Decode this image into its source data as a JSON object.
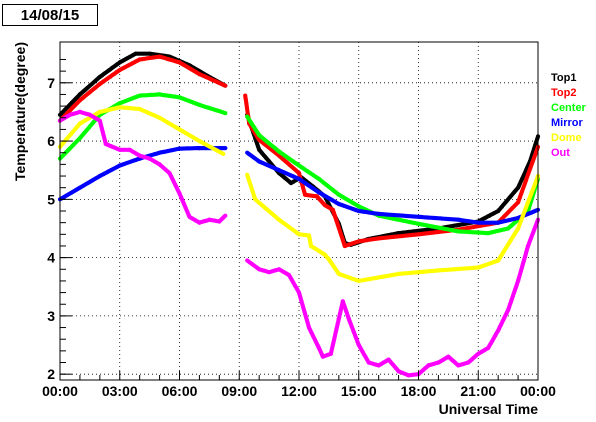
{
  "date_label": "14/08/15",
  "chart_data": {
    "type": "scatter",
    "title": "",
    "xlabel": "Universal Time",
    "ylabel": "Temperature(degree)",
    "xlim": [
      0,
      24
    ],
    "ylim": [
      1.9,
      7.7
    ],
    "grid": {
      "x": true,
      "y": true
    },
    "legend_position": "right",
    "x_ticks": [
      {
        "v": 0,
        "label": "00:00"
      },
      {
        "v": 3,
        "label": "03:00"
      },
      {
        "v": 6,
        "label": "06:00"
      },
      {
        "v": 9,
        "label": "09:00"
      },
      {
        "v": 12,
        "label": "12:00"
      },
      {
        "v": 15,
        "label": "15:00"
      },
      {
        "v": 18,
        "label": "18:00"
      },
      {
        "v": 21,
        "label": "21:00"
      },
      {
        "v": 24,
        "label": "00:00"
      }
    ],
    "y_ticks": [
      2,
      3,
      4,
      5,
      6,
      7
    ],
    "series": [
      {
        "name": "Top1",
        "color": "#000000",
        "segments": [
          [
            [
              0,
              6.45
            ],
            [
              1,
              6.8
            ],
            [
              2,
              7.1
            ],
            [
              3,
              7.35
            ],
            [
              3.8,
              7.5
            ],
            [
              4.5,
              7.5
            ],
            [
              5.5,
              7.45
            ],
            [
              6.5,
              7.3
            ],
            [
              7.5,
              7.1
            ],
            [
              8.3,
              6.95
            ]
          ],
          [
            [
              9.4,
              6.45
            ],
            [
              10,
              5.85
            ],
            [
              11,
              5.45
            ],
            [
              11.6,
              5.28
            ],
            [
              12.1,
              5.38
            ],
            [
              12.7,
              5.22
            ],
            [
              13.3,
              5.05
            ],
            [
              14,
              4.58
            ],
            [
              14.3,
              4.25
            ],
            [
              14.6,
              4.22
            ],
            [
              15.5,
              4.32
            ],
            [
              17,
              4.42
            ],
            [
              19,
              4.5
            ],
            [
              21,
              4.62
            ],
            [
              22,
              4.8
            ],
            [
              23,
              5.2
            ],
            [
              23.6,
              5.65
            ],
            [
              24,
              6.08
            ]
          ]
        ]
      },
      {
        "name": "Top2",
        "color": "#ff0000",
        "segments": [
          [
            [
              0,
              6.35
            ],
            [
              1,
              6.7
            ],
            [
              2,
              6.98
            ],
            [
              3,
              7.22
            ],
            [
              4,
              7.4
            ],
            [
              5,
              7.45
            ],
            [
              6,
              7.35
            ],
            [
              7,
              7.15
            ],
            [
              8.3,
              6.95
            ]
          ],
          [
            [
              9.3,
              6.78
            ],
            [
              9.5,
              6.3
            ],
            [
              10,
              6.02
            ],
            [
              11,
              5.75
            ],
            [
              12,
              5.45
            ],
            [
              12.3,
              5.08
            ],
            [
              12.9,
              5.05
            ],
            [
              13.3,
              4.9
            ],
            [
              13.7,
              4.82
            ],
            [
              14.3,
              4.2
            ],
            [
              15,
              4.28
            ],
            [
              16,
              4.33
            ],
            [
              18,
              4.4
            ],
            [
              20,
              4.48
            ],
            [
              22,
              4.6
            ],
            [
              23,
              4.95
            ],
            [
              24,
              5.9
            ]
          ]
        ]
      },
      {
        "name": "Center",
        "color": "#00ff00",
        "segments": [
          [
            [
              0,
              5.7
            ],
            [
              1,
              6.05
            ],
            [
              2,
              6.45
            ],
            [
              3,
              6.65
            ],
            [
              4,
              6.78
            ],
            [
              5,
              6.8
            ],
            [
              6,
              6.75
            ],
            [
              7,
              6.62
            ],
            [
              8.3,
              6.48
            ]
          ],
          [
            [
              9.4,
              6.42
            ],
            [
              10,
              6.1
            ],
            [
              11,
              5.82
            ],
            [
              12,
              5.58
            ],
            [
              13,
              5.35
            ],
            [
              14,
              5.08
            ],
            [
              15,
              4.88
            ],
            [
              16,
              4.72
            ],
            [
              18,
              4.58
            ],
            [
              20,
              4.45
            ],
            [
              21.5,
              4.42
            ],
            [
              22.5,
              4.5
            ],
            [
              23.5,
              4.8
            ],
            [
              24,
              5.35
            ]
          ]
        ]
      },
      {
        "name": "Mirror",
        "color": "#0000ff",
        "segments": [
          [
            [
              0,
              5.0
            ],
            [
              1,
              5.2
            ],
            [
              2,
              5.4
            ],
            [
              3,
              5.58
            ],
            [
              4,
              5.7
            ],
            [
              5,
              5.8
            ],
            [
              6,
              5.87
            ],
            [
              7,
              5.88
            ],
            [
              8.3,
              5.88
            ]
          ],
          [
            [
              9.4,
              5.8
            ],
            [
              10,
              5.65
            ],
            [
              11,
              5.5
            ],
            [
              12,
              5.35
            ],
            [
              13,
              5.12
            ],
            [
              14,
              4.92
            ],
            [
              15,
              4.8
            ],
            [
              16,
              4.75
            ],
            [
              18,
              4.7
            ],
            [
              20,
              4.65
            ],
            [
              21,
              4.6
            ],
            [
              22,
              4.6
            ],
            [
              23,
              4.68
            ],
            [
              24,
              4.82
            ]
          ]
        ]
      },
      {
        "name": "Dome",
        "color": "#ffff00",
        "segments": [
          [
            [
              0,
              5.9
            ],
            [
              1,
              6.3
            ],
            [
              2,
              6.5
            ],
            [
              3,
              6.58
            ],
            [
              4,
              6.55
            ],
            [
              5,
              6.4
            ],
            [
              6,
              6.2
            ],
            [
              7,
              6.0
            ],
            [
              8.2,
              5.78
            ]
          ],
          [
            [
              9.4,
              5.42
            ],
            [
              9.8,
              5.0
            ],
            [
              11,
              4.65
            ],
            [
              12,
              4.4
            ],
            [
              12.5,
              4.38
            ],
            [
              12.6,
              4.2
            ],
            [
              13.3,
              4.05
            ],
            [
              13.5,
              3.97
            ],
            [
              14,
              3.72
            ],
            [
              15,
              3.6
            ],
            [
              17,
              3.72
            ],
            [
              19,
              3.78
            ],
            [
              21,
              3.83
            ],
            [
              22,
              3.95
            ],
            [
              23,
              4.5
            ],
            [
              24,
              5.4
            ]
          ]
        ]
      },
      {
        "name": "Out",
        "color": "#ff00ff",
        "segments": [
          [
            [
              0,
              6.35
            ],
            [
              0.5,
              6.45
            ],
            [
              1,
              6.5
            ],
            [
              1.5,
              6.45
            ],
            [
              2,
              6.35
            ],
            [
              2.3,
              5.95
            ],
            [
              3,
              5.85
            ],
            [
              3.5,
              5.85
            ],
            [
              4,
              5.75
            ],
            [
              4.5,
              5.7
            ],
            [
              5,
              5.6
            ],
            [
              5.5,
              5.45
            ],
            [
              6,
              5.1
            ],
            [
              6.5,
              4.7
            ],
            [
              7,
              4.6
            ],
            [
              7.5,
              4.65
            ],
            [
              8,
              4.62
            ],
            [
              8.3,
              4.72
            ]
          ],
          [
            [
              9.4,
              3.95
            ],
            [
              10,
              3.8
            ],
            [
              10.5,
              3.75
            ],
            [
              11,
              3.8
            ],
            [
              11.5,
              3.7
            ],
            [
              12,
              3.4
            ],
            [
              12.5,
              2.8
            ],
            [
              13,
              2.45
            ],
            [
              13.2,
              2.3
            ],
            [
              13.6,
              2.35
            ],
            [
              14,
              2.95
            ],
            [
              14.2,
              3.25
            ],
            [
              14.5,
              2.95
            ],
            [
              15,
              2.5
            ],
            [
              15.5,
              2.2
            ],
            [
              16,
              2.15
            ],
            [
              16.5,
              2.25
            ],
            [
              17,
              2.05
            ],
            [
              17.5,
              1.98
            ],
            [
              18,
              2.0
            ],
            [
              18.5,
              2.15
            ],
            [
              19,
              2.2
            ],
            [
              19.5,
              2.3
            ],
            [
              20,
              2.15
            ],
            [
              20.5,
              2.2
            ],
            [
              21,
              2.35
            ],
            [
              21.5,
              2.45
            ],
            [
              22,
              2.75
            ],
            [
              22.5,
              3.1
            ],
            [
              23,
              3.6
            ],
            [
              23.5,
              4.2
            ],
            [
              24,
              4.65
            ]
          ]
        ]
      }
    ]
  }
}
